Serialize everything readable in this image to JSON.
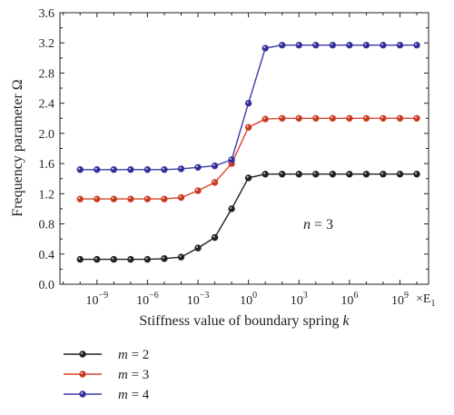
{
  "chart_data": {
    "type": "line",
    "xlabel": "Stiffness value of boundary spring ",
    "xlabel_var": "k",
    "ylabel": "Frequency parameter Ω",
    "x_unit": "×E",
    "x_unit_sub": "1",
    "x_scale": "log10",
    "xlim": [
      -11.2,
      10.7
    ],
    "ylim": [
      0.0,
      3.6
    ],
    "y_ticks": [
      "0.0",
      "0.4",
      "0.8",
      "1.2",
      "1.6",
      "2.0",
      "2.4",
      "2.8",
      "3.2",
      "3.6"
    ],
    "x_tick_exponents": [
      "-9",
      "-6",
      "-3",
      "0",
      "3",
      "6",
      "9"
    ],
    "annotation": {
      "var": "n",
      "text": " = 3"
    },
    "legend_position": "bottom-left-below",
    "x": [
      -10,
      -9,
      -8,
      -7,
      -6,
      -5,
      -4,
      -3,
      -2,
      -1,
      0,
      1,
      2,
      3,
      4,
      5,
      6,
      7,
      8,
      9,
      10
    ],
    "series": [
      {
        "name": "m = 2",
        "label_var": "m",
        "label_text": " = 2",
        "color": "#222222",
        "marker_fill": "#222222",
        "values": [
          0.33,
          0.33,
          0.33,
          0.33,
          0.33,
          0.34,
          0.36,
          0.48,
          0.62,
          1.0,
          1.41,
          1.46,
          1.46,
          1.46,
          1.46,
          1.46,
          1.46,
          1.46,
          1.46,
          1.46,
          1.46
        ]
      },
      {
        "name": "m = 3",
        "label_var": "m",
        "label_text": " = 3",
        "color": "#d9452b",
        "marker_fill": "#c0391f",
        "values": [
          1.13,
          1.13,
          1.13,
          1.13,
          1.13,
          1.13,
          1.15,
          1.24,
          1.35,
          1.6,
          2.08,
          2.19,
          2.2,
          2.2,
          2.2,
          2.2,
          2.2,
          2.2,
          2.2,
          2.2,
          2.2
        ]
      },
      {
        "name": "m = 4",
        "label_var": "m",
        "label_text": " = 4",
        "color": "#3d39a8",
        "marker_fill": "#2f2c96",
        "values": [
          1.52,
          1.52,
          1.52,
          1.52,
          1.52,
          1.52,
          1.53,
          1.55,
          1.57,
          1.65,
          2.4,
          3.13,
          3.17,
          3.17,
          3.17,
          3.17,
          3.17,
          3.17,
          3.17,
          3.17,
          3.17
        ]
      }
    ]
  }
}
